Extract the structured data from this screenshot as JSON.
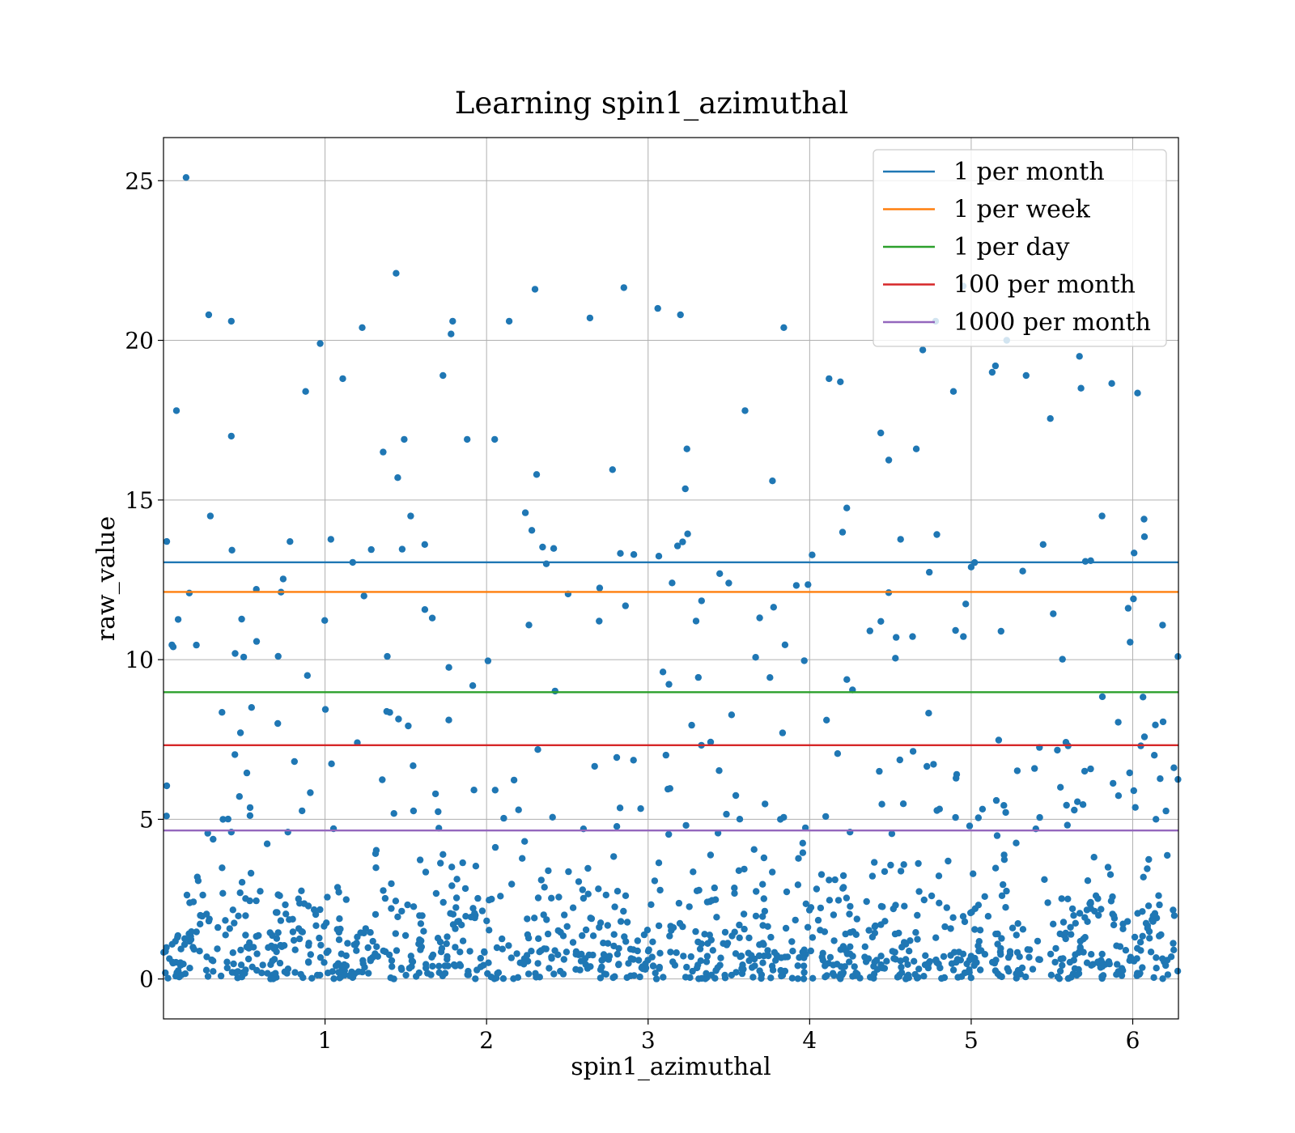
{
  "chart_data": {
    "type": "scatter",
    "title": "Learning spin1_azimuthal",
    "xlabel": "spin1_azimuthal",
    "ylabel": "raw_value",
    "xlim": [
      0,
      6.283
    ],
    "ylim": [
      -1.25,
      26.35
    ],
    "xticks": [
      1,
      2,
      3,
      4,
      5,
      6
    ],
    "yticks": [
      0,
      5,
      10,
      15,
      20,
      25
    ],
    "grid": true,
    "legend_position": "top-right",
    "point_color": "#1f77b4",
    "thresholds": [
      {
        "name": "1 per month",
        "value": 13.05,
        "color": "#1f77b4"
      },
      {
        "name": "1 per week",
        "value": 12.12,
        "color": "#ff7f0e"
      },
      {
        "name": "1 per day",
        "value": 8.98,
        "color": "#2ca02c"
      },
      {
        "name": "100 per month",
        "value": 7.32,
        "color": "#d62728"
      },
      {
        "name": "1000 per month",
        "value": 4.65,
        "color": "#9467bd"
      }
    ],
    "highlighted_points": [
      [
        0.14,
        25.1
      ],
      [
        0.02,
        13.7
      ],
      [
        0.08,
        17.8
      ],
      [
        0.28,
        20.8
      ],
      [
        0.42,
        20.6
      ],
      [
        0.42,
        17.0
      ],
      [
        0.29,
        14.5
      ],
      [
        0.97,
        19.9
      ],
      [
        0.88,
        18.4
      ],
      [
        1.11,
        18.8
      ],
      [
        1.23,
        20.4
      ],
      [
        1.44,
        22.1
      ],
      [
        1.36,
        16.5
      ],
      [
        1.45,
        15.7
      ],
      [
        1.49,
        16.9
      ],
      [
        1.53,
        14.5
      ],
      [
        1.73,
        18.9
      ],
      [
        1.78,
        20.2
      ],
      [
        1.79,
        20.6
      ],
      [
        1.88,
        16.9
      ],
      [
        2.14,
        20.6
      ],
      [
        2.3,
        21.6
      ],
      [
        2.05,
        16.9
      ],
      [
        2.31,
        15.8
      ],
      [
        2.24,
        14.6
      ],
      [
        2.28,
        14.05
      ],
      [
        2.64,
        20.7
      ],
      [
        2.85,
        21.65
      ],
      [
        2.78,
        15.95
      ],
      [
        3.06,
        21.0
      ],
      [
        3.2,
        20.8
      ],
      [
        3.24,
        16.6
      ],
      [
        3.23,
        15.35
      ],
      [
        3.6,
        17.8
      ],
      [
        3.84,
        20.4
      ],
      [
        3.77,
        15.6
      ],
      [
        4.12,
        18.8
      ],
      [
        4.19,
        18.7
      ],
      [
        4.23,
        14.75
      ],
      [
        4.44,
        17.1
      ],
      [
        4.49,
        16.25
      ],
      [
        4.66,
        16.6
      ],
      [
        4.7,
        19.7
      ],
      [
        4.78,
        20.6
      ],
      [
        4.95,
        21.7
      ],
      [
        4.89,
        18.4
      ],
      [
        5.13,
        19.0
      ],
      [
        5.15,
        19.2
      ],
      [
        5.22,
        20.0
      ],
      [
        5.34,
        18.9
      ],
      [
        5.49,
        17.55
      ],
      [
        5.67,
        19.5
      ],
      [
        5.68,
        18.5
      ],
      [
        5.87,
        18.65
      ],
      [
        6.03,
        18.35
      ],
      [
        6.07,
        14.4
      ],
      [
        5.81,
        14.5
      ],
      [
        5.74,
        13.1
      ],
      [
        5.0,
        12.9
      ],
      [
        3.99,
        12.35
      ],
      [
        0.02,
        6.05
      ],
      [
        0.06,
        10.4
      ],
      [
        0.42,
        4.6
      ],
      [
        1.2,
        7.4
      ],
      [
        2.37,
        13.0
      ],
      [
        3.33,
        7.32
      ],
      [
        4.64,
        7.13
      ],
      [
        5.6,
        7.3
      ],
      [
        6.05,
        7.3
      ],
      [
        6.28,
        10.1
      ],
      [
        6.28,
        6.25
      ],
      [
        0.77,
        4.6
      ],
      [
        2.6,
        4.7
      ],
      [
        4.25,
        4.6
      ],
      [
        5.4,
        4.7
      ]
    ]
  }
}
